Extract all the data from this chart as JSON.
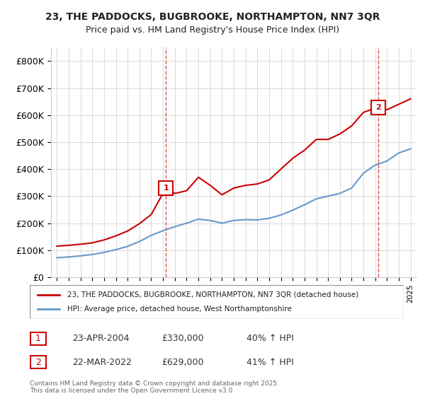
{
  "title": "23, THE PADDOCKS, BUGBROOKE, NORTHAMPTON, NN7 3QR",
  "subtitle": "Price paid vs. HM Land Registry's House Price Index (HPI)",
  "legend_line1": "23, THE PADDOCKS, BUGBROOKE, NORTHAMPTON, NN7 3QR (detached house)",
  "legend_line2": "HPI: Average price, detached house, West Northamptonshire",
  "footer": "Contains HM Land Registry data © Crown copyright and database right 2025.\nThis data is licensed under the Open Government Licence v3.0.",
  "transaction1_label": "1",
  "transaction1_date": "23-APR-2004",
  "transaction1_price": "£330,000",
  "transaction1_hpi": "40% ↑ HPI",
  "transaction2_label": "2",
  "transaction2_date": "22-MAR-2022",
  "transaction2_price": "£629,000",
  "transaction2_hpi": "41% ↑ HPI",
  "house_color": "#cc0000",
  "hpi_color": "#6699cc",
  "vline_color": "#cc0000",
  "background_color": "#ffffff",
  "ylim": [
    0,
    850000
  ],
  "yticks": [
    0,
    100000,
    200000,
    300000,
    400000,
    500000,
    600000,
    700000,
    800000
  ],
  "ytick_labels": [
    "£0",
    "£100K",
    "£200K",
    "£300K",
    "£400K",
    "£500K",
    "£600K",
    "£700K",
    "£800K"
  ],
  "years": [
    1995,
    1996,
    1997,
    1998,
    1999,
    2000,
    2001,
    2002,
    2003,
    2004,
    2005,
    2006,
    2007,
    2008,
    2009,
    2010,
    2011,
    2012,
    2013,
    2014,
    2015,
    2016,
    2017,
    2018,
    2019,
    2020,
    2021,
    2022,
    2023,
    2024,
    2025
  ],
  "hpi_values": [
    72000,
    75000,
    79000,
    84000,
    92000,
    102000,
    114000,
    132000,
    155000,
    172000,
    187000,
    200000,
    215000,
    210000,
    200000,
    210000,
    213000,
    212000,
    218000,
    230000,
    248000,
    268000,
    290000,
    300000,
    310000,
    330000,
    385000,
    415000,
    430000,
    460000,
    475000
  ],
  "house_values_x": [
    1995.0,
    1996.0,
    1997.0,
    1998.0,
    1999.0,
    2000.0,
    2001.0,
    2002.0,
    2003.0,
    2004.25,
    2005.0,
    2006.0,
    2007.0,
    2008.0,
    2009.0,
    2010.0,
    2011.0,
    2012.0,
    2013.0,
    2014.0,
    2015.0,
    2016.0,
    2017.0,
    2018.0,
    2019.0,
    2020.0,
    2021.0,
    2022.25,
    2023.0,
    2024.0,
    2025.0
  ],
  "house_values_y": [
    115000,
    118000,
    122000,
    127000,
    138000,
    153000,
    171000,
    198000,
    232000,
    330000,
    310000,
    320000,
    370000,
    340000,
    305000,
    330000,
    340000,
    345000,
    360000,
    400000,
    440000,
    470000,
    510000,
    510000,
    530000,
    560000,
    610000,
    629000,
    620000,
    640000,
    660000
  ],
  "transaction1_x": 2004.25,
  "transaction1_y": 330000,
  "transaction2_x": 2022.25,
  "transaction2_y": 629000,
  "xlim": [
    1994.5,
    2025.5
  ],
  "xticks": [
    1995,
    1996,
    1997,
    1998,
    1999,
    2000,
    2001,
    2002,
    2003,
    2004,
    2005,
    2006,
    2007,
    2008,
    2009,
    2010,
    2011,
    2012,
    2013,
    2014,
    2015,
    2016,
    2017,
    2018,
    2019,
    2020,
    2021,
    2022,
    2023,
    2024,
    2025
  ]
}
